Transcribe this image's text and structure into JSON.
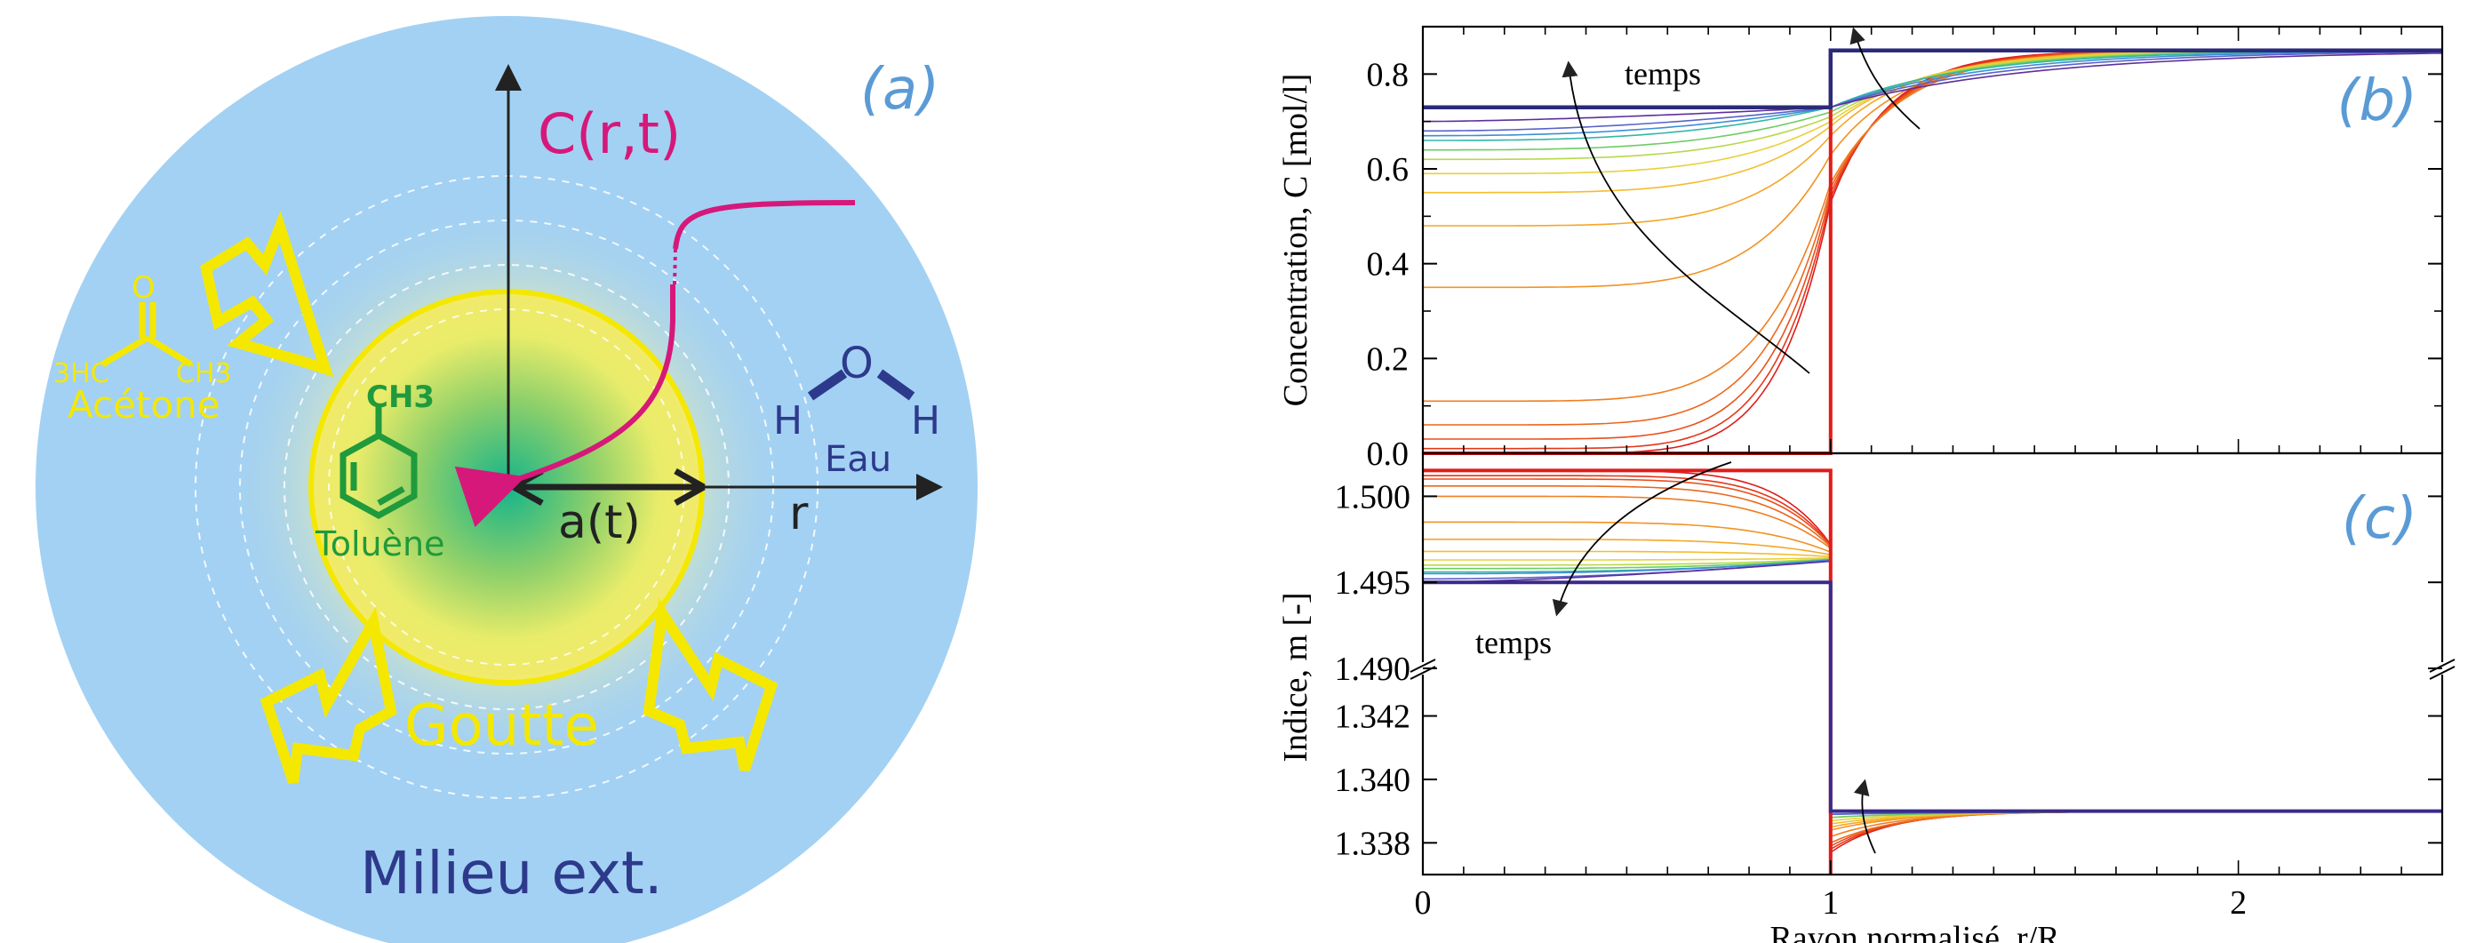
{
  "panel_a": {
    "label": "(a)",
    "concentration_label": "C(r,t)",
    "radius_front_label": "a(t)",
    "radius_axis_label": "r",
    "acetone": {
      "name": "Acétone",
      "o": "O",
      "left_group": "3HC",
      "right_group": "CH3"
    },
    "toluene": {
      "name": "Toluène",
      "group": "CH3"
    },
    "water": {
      "name": "Eau",
      "o": "O",
      "h_left": "H",
      "h_right": "H"
    },
    "drop_label": "Goutte",
    "medium_label": "Milieu ext.",
    "colors": {
      "medium": "#a3d1f3",
      "drop_edge": "#f2ea6a",
      "drop_center": "#1cb886",
      "arrows": "#f4e800",
      "curve": "#d6187a",
      "water": "#2d3a8c",
      "toluene": "#1f9a3c",
      "panel_label": "#5b9bd5"
    }
  },
  "chart_data": [
    {
      "panel": "(b)",
      "type": "line",
      "ylabel": "Concentration, C [mol/l]",
      "xlabel": "Rayon normalisé, r/R",
      "xlim": [
        0,
        2.5
      ],
      "ylim": [
        0,
        0.9
      ],
      "yticks": [
        "0.0",
        "0.2",
        "0.4",
        "0.6",
        "0.8"
      ],
      "annotation": "temps",
      "c_outside": 0.85,
      "initial_profile": {
        "x": [
          0,
          1,
          1,
          2.5
        ],
        "y": [
          0.0,
          0.0,
          0.85,
          0.85
        ]
      },
      "final_profile": {
        "x": [
          0,
          1,
          1,
          2.5
        ],
        "y": [
          0.73,
          0.73,
          0.85,
          0.85
        ]
      },
      "inside_at_r0": [
        0.0,
        0.01,
        0.03,
        0.06,
        0.11,
        0.35,
        0.48,
        0.55,
        0.59,
        0.62,
        0.64,
        0.66,
        0.67,
        0.68,
        0.7
      ],
      "interface_value": [
        0.53,
        0.54,
        0.55,
        0.56,
        0.57,
        0.63,
        0.67,
        0.69,
        0.7,
        0.71,
        0.72,
        0.73,
        0.73,
        0.73,
        0.73
      ]
    },
    {
      "panel": "(c)",
      "type": "line",
      "ylabel": "Indice, m [-]",
      "xlabel": "Rayon normalisé, r/R",
      "xlim": [
        0,
        2.5
      ],
      "upper_ylim": [
        1.49,
        1.5025
      ],
      "upper_yticks": [
        "1.490",
        "1.495",
        "1.500"
      ],
      "lower_ylim": [
        1.337,
        1.3435
      ],
      "lower_yticks": [
        "1.338",
        "1.340",
        "1.342"
      ],
      "xticks": [
        "0",
        "1",
        "2"
      ],
      "annotation": "temps",
      "m_inside_initial": 1.5015,
      "m_inside_final": 1.495,
      "m_outside": 1.339,
      "inside_at_r0": [
        1.5015,
        1.5012,
        1.501,
        1.5006,
        1.5,
        1.4985,
        1.4975,
        1.4968,
        1.4963,
        1.496,
        1.4958,
        1.4956,
        1.4955,
        1.4952,
        1.495
      ],
      "outside_at_interface": [
        1.3377,
        1.3378,
        1.3379,
        1.338,
        1.3382,
        1.3384,
        1.3385,
        1.3386,
        1.3387,
        1.3388,
        1.3388,
        1.3389,
        1.3389,
        1.3389,
        1.339
      ]
    }
  ]
}
